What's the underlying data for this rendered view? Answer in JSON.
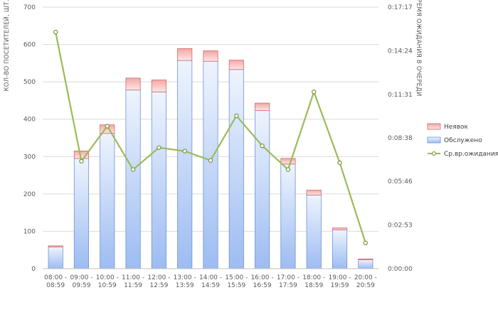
{
  "chart_data": {
    "type": "bar",
    "stacked": true,
    "categories": [
      [
        "08:00 -",
        "08:59"
      ],
      [
        "09:00 -",
        "09:59"
      ],
      [
        "10:00 -",
        "10:59"
      ],
      [
        "11:00 -",
        "11:59"
      ],
      [
        "12:00 -",
        "12:59"
      ],
      [
        "13:00 -",
        "13:59"
      ],
      [
        "14:00 -",
        "14:59"
      ],
      [
        "15:00 -",
        "15:59"
      ],
      [
        "16:00 -",
        "16:59"
      ],
      [
        "17:00 -",
        "17:59"
      ],
      [
        "18:00 -",
        "18:59"
      ],
      [
        "19:00 -",
        "19:59"
      ],
      [
        "20:00 -",
        "20:59"
      ]
    ],
    "series": [
      {
        "name": "Обслужено",
        "axis": "left",
        "type": "bar",
        "color": "#9dbcf2",
        "values": [
          58,
          295,
          362,
          478,
          473,
          557,
          555,
          533,
          423,
          280,
          197,
          104,
          24
        ]
      },
      {
        "name": "Неявок",
        "axis": "left",
        "type": "bar",
        "color": "#f4b4b4",
        "values": [
          3,
          20,
          23,
          32,
          32,
          32,
          28,
          25,
          20,
          15,
          13,
          5,
          2
        ]
      },
      {
        "name": "Ср.вр.ожидания",
        "axis": "right",
        "type": "line",
        "color": "#9bbb59",
        "values": [
          "0:15:38",
          "0:07:06",
          "0:09:25",
          "0:06:33",
          "0:08:00",
          "0:07:46",
          "0:07:09",
          "0:10:06",
          "0:08:07",
          "0:06:33",
          "0:11:41",
          "0:07:00",
          "0:01:42"
        ]
      }
    ],
    "ylabel": "КОЛ-ВО ПОСЕТИТЕЛЕЙ, ШТ.",
    "ylim": [
      0,
      700
    ],
    "yticks": [
      "0",
      "100",
      "200",
      "300",
      "400",
      "500",
      "600",
      "700"
    ],
    "y2label": "ВРЕМЯ ОЖИДАНИЯ В ОЧЕРЕДИ",
    "y2lim": [
      "0:00:00",
      "0:17:17"
    ],
    "y2ticks": [
      "0:00:00",
      "0:02:53",
      "0:05:46",
      "0:08:38",
      "0:11:31",
      "0:14:24",
      "0:17:17"
    ],
    "grid": true,
    "legend": {
      "position": "right",
      "order": [
        "Неявок",
        "Обслужено",
        "Ср.вр.ожидания"
      ]
    }
  }
}
